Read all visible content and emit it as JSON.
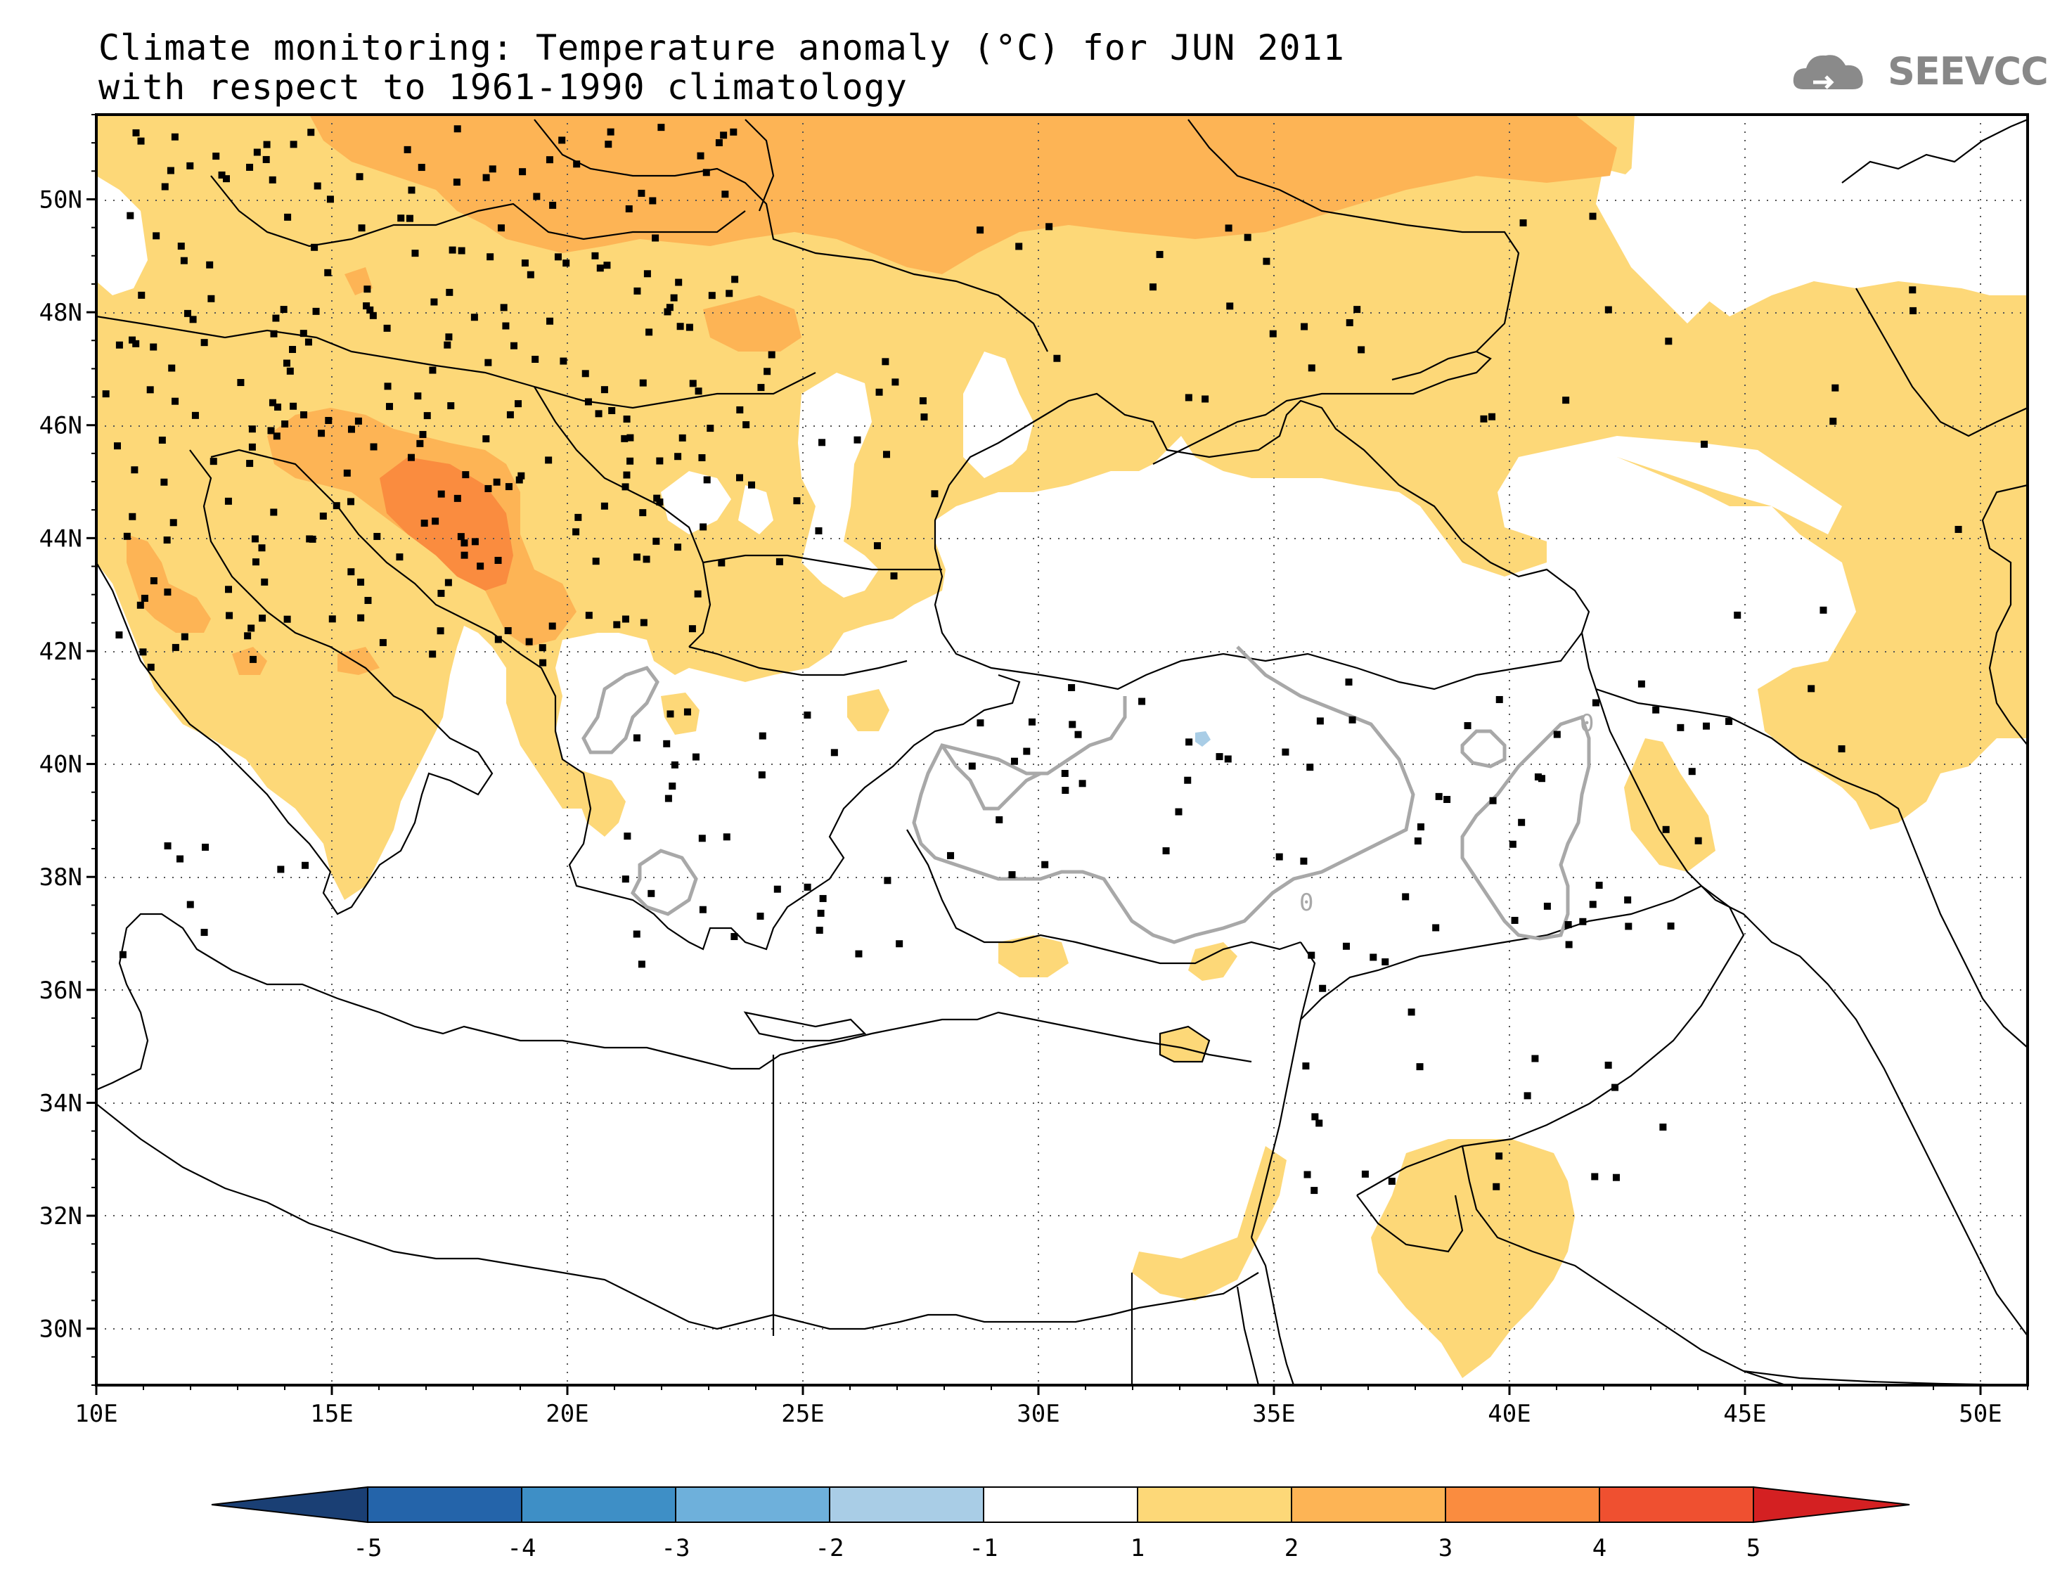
{
  "title": {
    "line1": "Climate monitoring: Temperature anomaly (°C) for JUN 2011",
    "line2": "with respect to 1961-1990 climatology"
  },
  "logo": {
    "text": "SEEVCCC",
    "icon": "cloud-icon"
  },
  "map": {
    "lon_range": [
      10,
      51
    ],
    "lat_range": [
      29,
      51.5
    ],
    "lon_ticks": [
      "10E",
      "15E",
      "20E",
      "25E",
      "30E",
      "35E",
      "40E",
      "45E",
      "50E"
    ],
    "lat_ticks": [
      "30N",
      "32N",
      "34N",
      "36N",
      "38N",
      "40N",
      "42N",
      "44N",
      "46N",
      "48N",
      "50N"
    ],
    "grid": "dotted",
    "contour_label": "0"
  },
  "colorbar": {
    "ticks": [
      "-5",
      "-4",
      "-3",
      "-2",
      "-1",
      "1",
      "2",
      "3",
      "4",
      "5"
    ],
    "colors": [
      "#1a3f74",
      "#2464aa",
      "#3e8fc6",
      "#6eb0db",
      "#a9cde6",
      "#ffffff",
      "#fdd878",
      "#fdb455",
      "#fa8c3f",
      "#ef5030",
      "#d42022"
    ]
  },
  "colors": {
    "anom_1_2": "#fdd878",
    "anom_2_3": "#fdb455",
    "anom_3_4": "#fa8c3f",
    "anom_neg": "#a9cde6",
    "contour": "#a8a8a8",
    "station": "#000000"
  }
}
